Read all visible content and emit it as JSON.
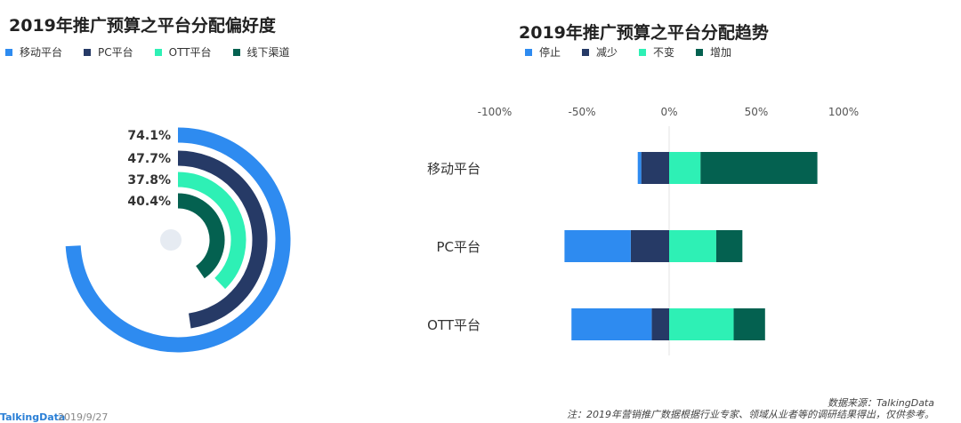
{
  "left_title": "2019年推广预算之平台分配偏好度",
  "right_title": "2019年推广预算之平台分配趋势",
  "left_legend": [
    {
      "label": "移动平台",
      "color": "#2E8BF0"
    },
    {
      "label": "PC平台",
      "color": "#263A66"
    },
    {
      "label": "OTT平台",
      "color": "#2EF0B5"
    },
    {
      "label": "线下渠道",
      "color": "#046150"
    }
  ],
  "right_legend": [
    {
      "label": "停止",
      "color": "#2E8BF0"
    },
    {
      "label": "减少",
      "color": "#263A66"
    },
    {
      "label": "不变",
      "color": "#2EF0B5"
    },
    {
      "label": "增加",
      "color": "#046150"
    }
  ],
  "chart_data": [
    {
      "type": "radial-bar",
      "title": "2019年推广预算之平台分配偏好度",
      "categories": [
        "移动平台",
        "PC平台",
        "OTT平台",
        "线下渠道"
      ],
      "values": [
        74.1,
        47.7,
        37.8,
        40.4
      ],
      "value_labels": [
        "74.1%",
        "47.7%",
        "37.8%",
        "40.4%"
      ],
      "colors": [
        "#2E8BF0",
        "#263A66",
        "#2EF0B5",
        "#046150"
      ]
    },
    {
      "type": "bar",
      "orientation": "horizontal",
      "stacked": "diverging",
      "title": "2019年推广预算之平台分配趋势",
      "categories": [
        "移动平台",
        "PC平台",
        "OTT平台"
      ],
      "series": [
        {
          "name": "停止",
          "color": "#2E8BF0",
          "values": [
            -2,
            -38,
            -46
          ]
        },
        {
          "name": "减少",
          "color": "#263A66",
          "values": [
            -16,
            -22,
            -10
          ]
        },
        {
          "name": "不变",
          "color": "#2EF0B5",
          "values": [
            18,
            27,
            37
          ]
        },
        {
          "name": "增加",
          "color": "#046150",
          "values": [
            67,
            15,
            18
          ]
        }
      ],
      "xlim": [
        -100,
        100
      ],
      "xticks": [
        -100,
        -50,
        0,
        50,
        100
      ],
      "xtick_labels": [
        "-100%",
        "-50%",
        "0%",
        "50%",
        "100%"
      ]
    }
  ],
  "source": "数据来源：TalkingData",
  "note": "注：2019年营销推广数据根据行业专家、领域从业者等的调研结果得出，仅供参考。",
  "brand": "TalkingData",
  "date": "2019/9/27"
}
